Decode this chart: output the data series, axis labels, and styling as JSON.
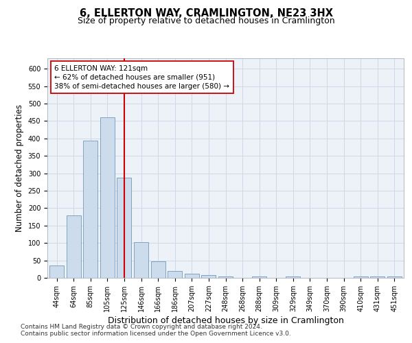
{
  "title_line1": "6, ELLERTON WAY, CRAMLINGTON, NE23 3HX",
  "title_line2": "Size of property relative to detached houses in Cramlington",
  "xlabel": "Distribution of detached houses by size in Cramlington",
  "ylabel": "Number of detached properties",
  "categories": [
    "44sqm",
    "64sqm",
    "85sqm",
    "105sqm",
    "125sqm",
    "146sqm",
    "166sqm",
    "186sqm",
    "207sqm",
    "227sqm",
    "248sqm",
    "268sqm",
    "288sqm",
    "309sqm",
    "329sqm",
    "349sqm",
    "370sqm",
    "390sqm",
    "410sqm",
    "431sqm",
    "451sqm"
  ],
  "values": [
    35,
    180,
    393,
    460,
    287,
    103,
    48,
    19,
    12,
    8,
    4,
    0,
    4,
    0,
    4,
    0,
    0,
    0,
    4,
    4,
    4
  ],
  "bar_color": "#ccdcec",
  "bar_edge_color": "#7098b8",
  "vline_x_index": 4,
  "vline_color": "#cc0000",
  "annotation_text": "6 ELLERTON WAY: 121sqm\n← 62% of detached houses are smaller (951)\n38% of semi-detached houses are larger (580) →",
  "annotation_box_facecolor": "#ffffff",
  "annotation_box_edgecolor": "#cc0000",
  "ylim": [
    0,
    630
  ],
  "yticks": [
    0,
    50,
    100,
    150,
    200,
    250,
    300,
    350,
    400,
    450,
    500,
    550,
    600
  ],
  "grid_color": "#ccd8e8",
  "background_color": "#edf2f8",
  "footer_line1": "Contains HM Land Registry data © Crown copyright and database right 2024.",
  "footer_line2": "Contains public sector information licensed under the Open Government Licence v3.0.",
  "title_fontsize": 10.5,
  "subtitle_fontsize": 9,
  "ylabel_fontsize": 8.5,
  "xlabel_fontsize": 9,
  "tick_fontsize": 7,
  "annotation_fontsize": 7.5,
  "footer_fontsize": 6.5
}
